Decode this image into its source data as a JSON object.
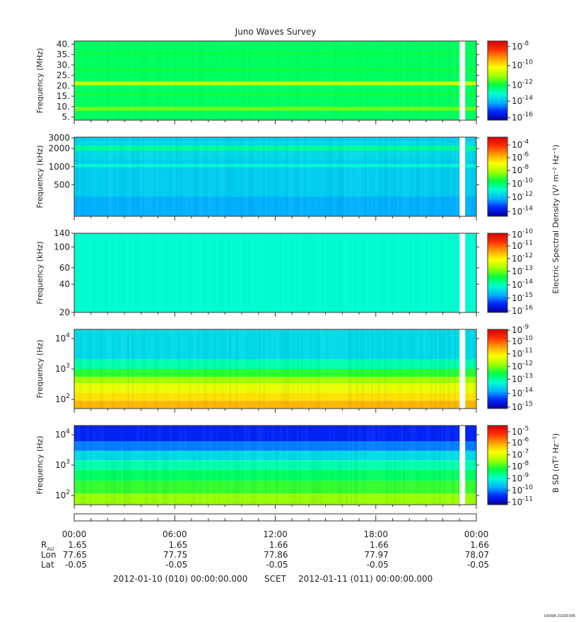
{
  "title": "Juno Waves Survey",
  "footer_stamp": "UIOWA 20200306",
  "time_axis": {
    "tick_labels": [
      "00:00",
      "06:00",
      "12:00",
      "18:00",
      "00:00"
    ],
    "data_gap_start": "23:00",
    "data_gap_end": "23:20",
    "ephemeris": [
      {
        "label": "R",
        "sub": "AU",
        "values": [
          "1.65",
          "1.65",
          "1.66",
          "1.66",
          "1.66"
        ]
      },
      {
        "label": "Lon",
        "sub": "",
        "values": [
          "77.65",
          "77.75",
          "77.86",
          "77.97",
          "78.07"
        ]
      },
      {
        "label": "Lat",
        "sub": "",
        "values": [
          "-0.05",
          "-0.05",
          "-0.05",
          "-0.05",
          "-0.05"
        ]
      }
    ],
    "start_text": "2012-01-10 (010) 00:00:00.000",
    "scet_text": "SCET",
    "end_text": "2012-01-11 (011) 00:00:00.000"
  },
  "colors": {
    "colormap": [
      "#0000a0",
      "#0028ff",
      "#00b4ff",
      "#00ffd0",
      "#00ff40",
      "#a0ff00",
      "#ffff00",
      "#ffa000",
      "#ff3000",
      "#d80000"
    ],
    "gap": "#ffffff",
    "frame": "#333333"
  },
  "shared_colorbar_labels": {
    "electric": "Electric Spectral Density (V² m⁻² Hz⁻¹)",
    "magnetic": "B SD (nT² Hz⁻¹)"
  },
  "chart_data": [
    {
      "type": "heatmap",
      "ylabel": "Frequency (MHz)",
      "yscale": "linear",
      "ylim": [
        3.5,
        41.5
      ],
      "yticks": [
        {
          "v": 40,
          "t": "40."
        },
        {
          "v": 35,
          "t": "35."
        },
        {
          "v": 30,
          "t": "30."
        },
        {
          "v": 25,
          "t": "25."
        },
        {
          "v": 20,
          "t": "20."
        },
        {
          "v": 15,
          "t": "15."
        },
        {
          "v": 10,
          "t": "10."
        },
        {
          "v": 5,
          "t": "5."
        }
      ],
      "colorbar": {
        "ticks": [
          {
            "base": "10",
            "exp": "-8",
            "c": 0.93
          },
          {
            "base": "10",
            "exp": "-10",
            "c": 0.69
          },
          {
            "base": "10",
            "exp": "-12",
            "c": 0.44
          },
          {
            "base": "10",
            "exp": "-14",
            "c": 0.24
          },
          {
            "base": "10",
            "exp": "-16",
            "c": 0.03
          }
        ]
      },
      "rows": [
        {
          "f": [
            0,
            1
          ],
          "c": 0.42
        },
        {
          "f": [
            0.12,
            0.17
          ],
          "c": 0.52
        },
        {
          "f": [
            0.44,
            0.49
          ],
          "c": 0.6
        },
        {
          "f": [
            0.31,
            0.34
          ],
          "c": 0.46
        },
        {
          "f": [
            0.62,
            0.66
          ],
          "c": 0.45
        },
        {
          "f": [
            0.83,
            0.86
          ],
          "c": 0.45
        }
      ],
      "noise": 0.02
    },
    {
      "type": "heatmap",
      "ylabel": "Frequency (kHz)",
      "yscale": "log",
      "ylim": [
        150,
        3100
      ],
      "yticks": [
        {
          "v": 3000,
          "t": "3000"
        },
        {
          "v": 2000,
          "t": "2000"
        },
        {
          "v": 1000,
          "t": "1000"
        },
        {
          "v": 500,
          "t": "500"
        }
      ],
      "colorbar": {
        "ticks": [
          {
            "base": "10",
            "exp": "-4",
            "c": 0.9
          },
          {
            "base": "10",
            "exp": "-6",
            "c": 0.74
          },
          {
            "base": "10",
            "exp": "-8",
            "c": 0.58
          },
          {
            "base": "10",
            "exp": "-10",
            "c": 0.41
          },
          {
            "base": "10",
            "exp": "-12",
            "c": 0.24
          },
          {
            "base": "10",
            "exp": "-14",
            "c": 0.06
          }
        ]
      },
      "rows": [
        {
          "f": [
            0,
            1
          ],
          "c": 0.26
        },
        {
          "f": [
            0.72,
            0.95
          ],
          "c": 0.28
        },
        {
          "f": [
            0.83,
            0.89
          ],
          "c": 0.38
        },
        {
          "f": [
            0.62,
            0.66
          ],
          "c": 0.33
        },
        {
          "f": [
            0.0,
            0.25
          ],
          "c": 0.22
        }
      ],
      "noise": 0.05
    },
    {
      "type": "heatmap",
      "ylabel": "Frequency (kHz)",
      "yscale": "log",
      "ylim": [
        20,
        140
      ],
      "yticks": [
        {
          "v": 140,
          "t": "140"
        },
        {
          "v": 100,
          "t": "100"
        },
        {
          "v": 60,
          "t": "60"
        },
        {
          "v": 40,
          "t": "40"
        },
        {
          "v": 20,
          "t": "20"
        }
      ],
      "colorbar": {
        "ticks": [
          {
            "base": "10",
            "exp": "-10",
            "c": 0.98
          },
          {
            "base": "10",
            "exp": "-11",
            "c": 0.84
          },
          {
            "base": "10",
            "exp": "-12",
            "c": 0.68
          },
          {
            "base": "10",
            "exp": "-13",
            "c": 0.52
          },
          {
            "base": "10",
            "exp": "-14",
            "c": 0.35
          },
          {
            "base": "10",
            "exp": "-15",
            "c": 0.18
          },
          {
            "base": "10",
            "exp": "-16",
            "c": 0.02
          }
        ]
      },
      "rows": [
        {
          "f": [
            0,
            1
          ],
          "c": 0.33
        }
      ],
      "noise": 0.025
    },
    {
      "type": "heatmap",
      "ylabel": "Frequency (Hz)",
      "yscale": "log",
      "ylim": [
        50,
        20000
      ],
      "yticks": [
        {
          "v": 10000,
          "base": "10",
          "exp": "4"
        },
        {
          "v": 1000,
          "base": "10",
          "exp": "3"
        },
        {
          "v": 100,
          "base": "10",
          "exp": "2"
        }
      ],
      "colorbar": {
        "ticks": [
          {
            "base": "10",
            "exp": "-9",
            "c": 0.99
          },
          {
            "base": "10",
            "exp": "-10",
            "c": 0.85
          },
          {
            "base": "10",
            "exp": "-11",
            "c": 0.69
          },
          {
            "base": "10",
            "exp": "-12",
            "c": 0.53
          },
          {
            "base": "10",
            "exp": "-13",
            "c": 0.37
          },
          {
            "base": "10",
            "exp": "-14",
            "c": 0.19
          },
          {
            "base": "10",
            "exp": "-15",
            "c": 0.02
          }
        ]
      },
      "rows": [
        {
          "f": [
            0.62,
            1
          ],
          "c": 0.28
        },
        {
          "f": [
            0.5,
            0.62
          ],
          "c": 0.36
        },
        {
          "f": [
            0.4,
            0.5
          ],
          "c": 0.47
        },
        {
          "f": [
            0.32,
            0.4
          ],
          "c": 0.56
        },
        {
          "f": [
            0.2,
            0.32
          ],
          "c": 0.64
        },
        {
          "f": [
            0.1,
            0.2
          ],
          "c": 0.7
        },
        {
          "f": [
            0.0,
            0.1
          ],
          "c": 0.75
        }
      ],
      "noise": 0.05
    },
    {
      "type": "heatmap",
      "ylabel": "Frequency (Hz)",
      "yscale": "log",
      "ylim": [
        50,
        20000
      ],
      "yticks": [
        {
          "v": 10000,
          "base": "10",
          "exp": "4"
        },
        {
          "v": 1000,
          "base": "10",
          "exp": "3"
        },
        {
          "v": 100,
          "base": "10",
          "exp": "2"
        }
      ],
      "colorbar": {
        "ticks": [
          {
            "base": "10",
            "exp": "-5",
            "c": 0.92
          },
          {
            "base": "10",
            "exp": "-6",
            "c": 0.78
          },
          {
            "base": "10",
            "exp": "-7",
            "c": 0.63
          },
          {
            "base": "10",
            "exp": "-8",
            "c": 0.48
          },
          {
            "base": "10",
            "exp": "-9",
            "c": 0.33
          },
          {
            "base": "10",
            "exp": "-10",
            "c": 0.18
          },
          {
            "base": "10",
            "exp": "-11",
            "c": 0.03
          }
        ]
      },
      "rows": [
        {
          "f": [
            0.8,
            1
          ],
          "c": 0.1
        },
        {
          "f": [
            0.68,
            0.8
          ],
          "c": 0.18
        },
        {
          "f": [
            0.56,
            0.68
          ],
          "c": 0.28
        },
        {
          "f": [
            0.44,
            0.56
          ],
          "c": 0.36
        },
        {
          "f": [
            0.3,
            0.44
          ],
          "c": 0.42
        },
        {
          "f": [
            0.14,
            0.3
          ],
          "c": 0.48
        },
        {
          "f": [
            0.0,
            0.14
          ],
          "c": 0.55
        }
      ],
      "noise": 0.05
    }
  ]
}
